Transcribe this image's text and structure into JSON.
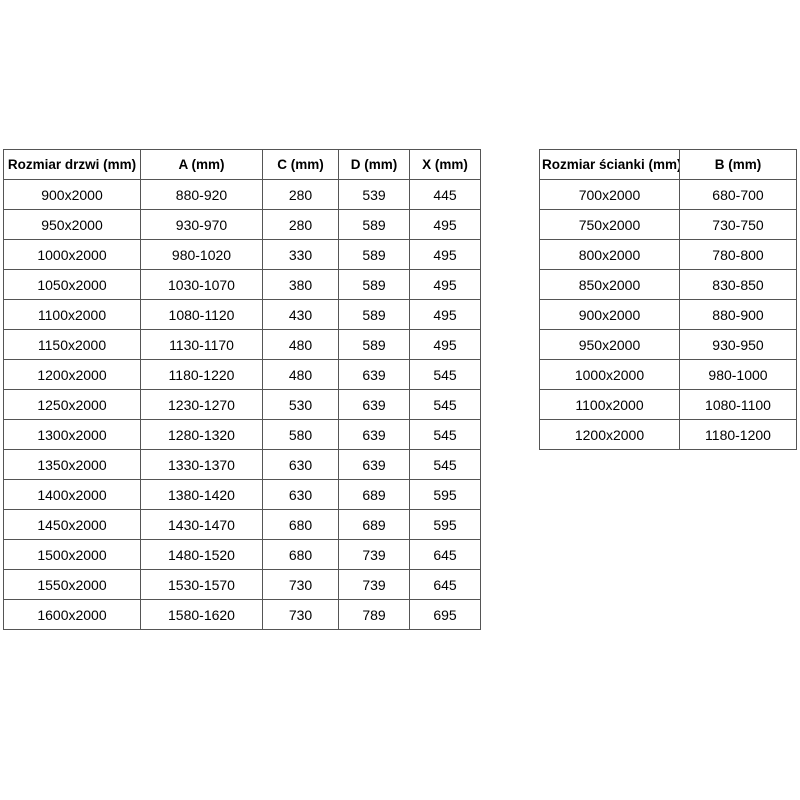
{
  "page": {
    "background_color": "#ffffff",
    "border_color": "#555555",
    "text_color": "#000000"
  },
  "door_table": {
    "headers": [
      "Rozmiar drzwi (mm)",
      "A (mm)",
      "C (mm)",
      "D (mm)",
      "X (mm)"
    ],
    "rows": [
      [
        "900x2000",
        "880-920",
        "280",
        "539",
        "445"
      ],
      [
        "950x2000",
        "930-970",
        "280",
        "589",
        "495"
      ],
      [
        "1000x2000",
        "980-1020",
        "330",
        "589",
        "495"
      ],
      [
        "1050x2000",
        "1030-1070",
        "380",
        "589",
        "495"
      ],
      [
        "1100x2000",
        "1080-1120",
        "430",
        "589",
        "495"
      ],
      [
        "1150x2000",
        "1130-1170",
        "480",
        "589",
        "495"
      ],
      [
        "1200x2000",
        "1180-1220",
        "480",
        "639",
        "545"
      ],
      [
        "1250x2000",
        "1230-1270",
        "530",
        "639",
        "545"
      ],
      [
        "1300x2000",
        "1280-1320",
        "580",
        "639",
        "545"
      ],
      [
        "1350x2000",
        "1330-1370",
        "630",
        "639",
        "545"
      ],
      [
        "1400x2000",
        "1380-1420",
        "630",
        "689",
        "595"
      ],
      [
        "1450x2000",
        "1430-1470",
        "680",
        "689",
        "595"
      ],
      [
        "1500x2000",
        "1480-1520",
        "680",
        "739",
        "645"
      ],
      [
        "1550x2000",
        "1530-1570",
        "730",
        "739",
        "645"
      ],
      [
        "1600x2000",
        "1580-1620",
        "730",
        "789",
        "695"
      ]
    ]
  },
  "wall_table": {
    "headers": [
      "Rozmiar ścianki (mm)",
      "B (mm)"
    ],
    "rows": [
      [
        "700x2000",
        "680-700"
      ],
      [
        "750x2000",
        "730-750"
      ],
      [
        "800x2000",
        "780-800"
      ],
      [
        "850x2000",
        "830-850"
      ],
      [
        "900x2000",
        "880-900"
      ],
      [
        "950x2000",
        "930-950"
      ],
      [
        "1000x2000",
        "980-1000"
      ],
      [
        "1100x2000",
        "1080-1100"
      ],
      [
        "1200x2000",
        "1180-1200"
      ]
    ]
  }
}
